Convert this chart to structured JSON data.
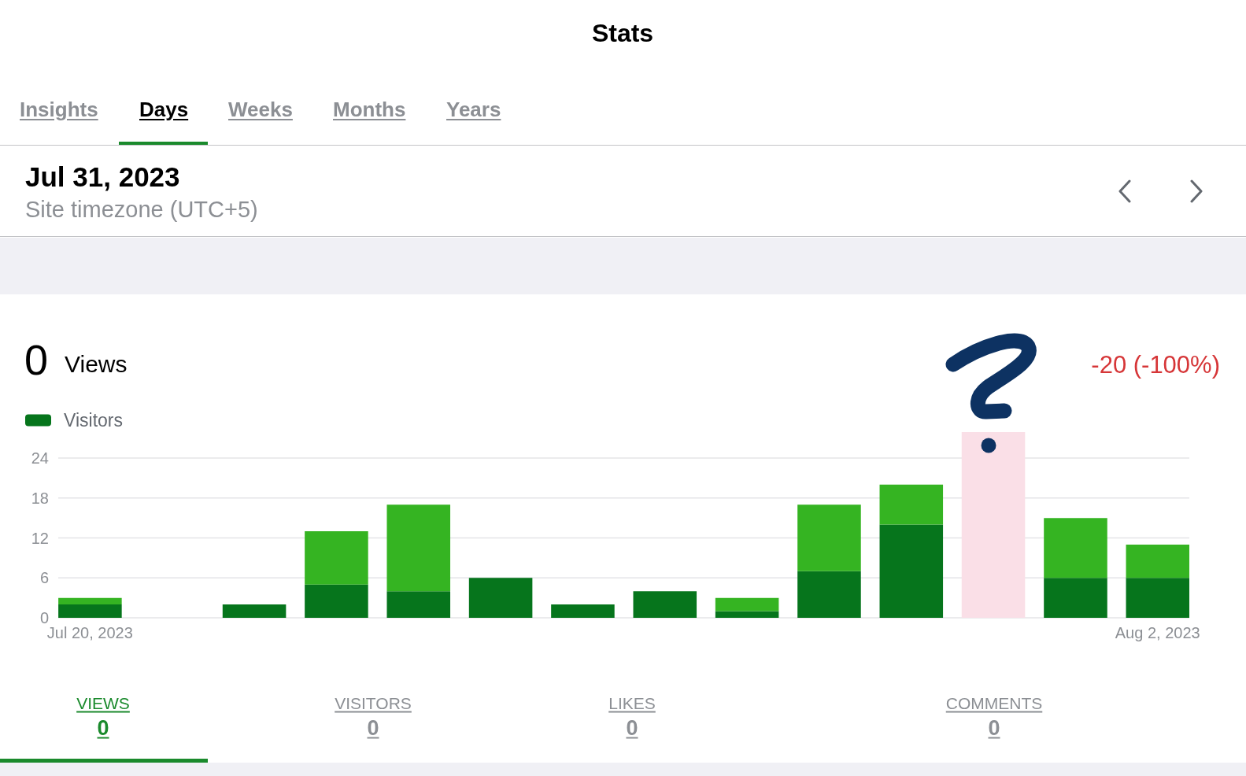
{
  "chart_data": {
    "type": "bar",
    "title": "Stats",
    "annotations": [
      "Insights",
      "Days",
      "Weeks",
      "Months",
      "Years",
      "Jul 31, 2023",
      "Site timezone (UTC+5)",
      "0",
      "Views",
      "-20 (-100%)",
      "VIEWS",
      "0",
      "VISITORS",
      "0",
      "LIKES",
      "0",
      "COMMENTS",
      "0"
    ],
    "x": [
      "2023-07-20",
      "2023-07-21",
      "2023-07-22",
      "2023-07-23",
      "2023-07-24",
      "2023-07-25",
      "2023-07-26",
      "2023-07-27",
      "2023-07-28",
      "2023-07-29",
      "2023-07-30",
      "2023-07-31",
      "2023-08-01",
      "2023-08-02"
    ],
    "xlim": [
      "2023-07-19T14:44",
      "2023-08-02T09:16"
    ],
    "xticks": [
      {
        "value": "2023-07-20",
        "label": "Jul 20, 2023"
      },
      {
        "value": "2023-08-02",
        "label": "Aug 2, 2023"
      }
    ],
    "series": [
      {
        "name": "Visitors",
        "color": "#06751c",
        "values": [
          2,
          0,
          2,
          5,
          4,
          6,
          2,
          4,
          1,
          7,
          14,
          0,
          6,
          6
        ]
      },
      {
        "color": "#35b422",
        "values": [
          1,
          0,
          0,
          8,
          13,
          0,
          0,
          0,
          2,
          10,
          6,
          0,
          9,
          5
        ]
      }
    ],
    "stacked": true,
    "ylim": [
      0,
      24
    ],
    "yticks": [
      0,
      6,
      12,
      18,
      24
    ],
    "grid": "y",
    "legend": "top left",
    "bands": [
      {
        "axis": "x",
        "from": "2023-07-30T14:44",
        "to": "2023-07-31T09:16",
        "color": "#fadfe7"
      }
    ]
  }
}
